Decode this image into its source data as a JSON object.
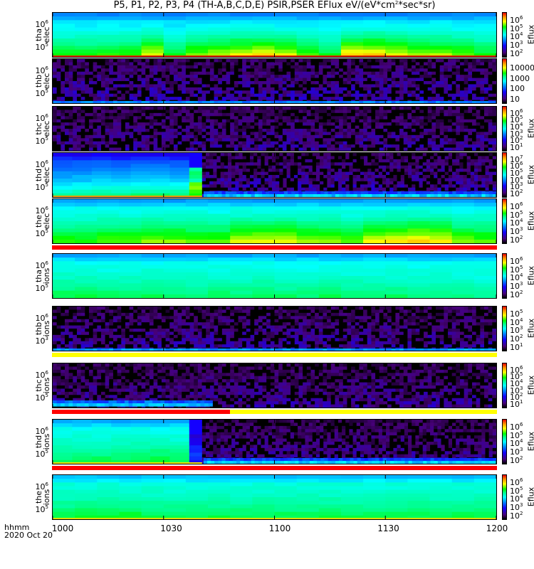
{
  "title": "P5, P1, P2, P3, P4 (TH-A,B,C,D,E) PSIR,PSER EFlux eV/(eV*cm",
  "title_sup": "2",
  "title_end": "*sec*sr)",
  "x_axis": {
    "label_line1": "hhmm",
    "label_line2": "2020 Oct 20",
    "ticks": [
      "1000",
      "1030",
      "1100",
      "1130",
      "1200"
    ]
  },
  "colorbar_label": "Eflux",
  "colors": {
    "bar_red": "#ff0000",
    "bar_yellow": "#ffff00"
  },
  "chart_data": {
    "type": "heatmap",
    "title": "P5, P1, P2, P3, P4 (TH-A,B,C,D,E) PSIR,PSER EFlux eV/(eV*cm^2*sec*sr)",
    "xlabel": "hhmm 2020 Oct 20",
    "xlim": [
      "1000",
      "1200"
    ],
    "note": "levels are fractions (0-1) of each panel's color scale; 20 time bins of 6 min",
    "panels": [
      {
        "probe": "tha",
        "species": "elec",
        "yticks": [
          {
            "b": "10",
            "e": "6"
          },
          {
            "b": "10",
            "e": "5"
          }
        ],
        "cbar": [
          {
            "b": "10",
            "e": "2"
          },
          {
            "b": "10",
            "e": "3"
          },
          {
            "b": "10",
            "e": "4"
          },
          {
            "b": "10",
            "e": "5"
          },
          {
            "b": "10",
            "e": "6"
          }
        ],
        "eflux": true,
        "mode": "smooth",
        "top_level": 0.46,
        "bottom_levels": [
          0.68,
          0.68,
          0.7,
          0.7,
          0.8,
          0.66,
          0.74,
          0.76,
          0.8,
          0.82,
          0.78,
          0.72,
          0.66,
          0.84,
          0.84,
          0.8,
          0.76,
          0.76,
          0.72,
          0.68
        ],
        "bottom_strip": "#e02000"
      },
      {
        "probe": "thb",
        "species": "elec",
        "yticks": [
          {
            "b": "10",
            "e": "6"
          },
          {
            "b": "10",
            "e": "5"
          }
        ],
        "cbar": [
          {
            "b": "10",
            "e": ""
          },
          {
            "b": "100",
            "e": ""
          },
          {
            "b": "1000",
            "e": ""
          },
          {
            "b": "10000",
            "e": ""
          }
        ],
        "eflux": false,
        "mode": "noise",
        "noise_max": 0.2,
        "bottom_line": 0.38
      },
      {
        "probe": "thc",
        "species": "elec",
        "yticks": [
          {
            "b": "10",
            "e": "6"
          },
          {
            "b": "10",
            "e": "5"
          }
        ],
        "cbar": [
          {
            "b": "10",
            "e": "1"
          },
          {
            "b": "10",
            "e": "2"
          },
          {
            "b": "10",
            "e": "3"
          },
          {
            "b": "10",
            "e": "4"
          },
          {
            "b": "10",
            "e": "5"
          },
          {
            "b": "10",
            "e": "6"
          }
        ],
        "eflux": true,
        "mode": "noise",
        "noise_max": 0.17
      },
      {
        "probe": "thd",
        "species": "elec",
        "yticks": [
          {
            "b": "10",
            "e": "6"
          },
          {
            "b": "10",
            "e": "5"
          }
        ],
        "cbar": [
          {
            "b": "10",
            "e": "2"
          },
          {
            "b": "10",
            "e": "3"
          },
          {
            "b": "10",
            "e": "4"
          },
          {
            "b": "10",
            "e": "5"
          },
          {
            "b": "10",
            "e": "6"
          },
          {
            "b": "10",
            "e": "7"
          }
        ],
        "eflux": true,
        "mode": "split",
        "split_fraction": 0.34,
        "top_level": 0.32,
        "bottom_levels": [
          0.58,
          0.58,
          0.6,
          0.6,
          0.62,
          0.62,
          0.6
        ],
        "gap_column_level": 0.72,
        "noise_max": 0.2,
        "bottom_band": 0.4,
        "bottom_strip": "#f0a000"
      },
      {
        "probe": "the",
        "species": "elec",
        "yticks": [
          {
            "b": "10",
            "e": "6"
          },
          {
            "b": "10",
            "e": "5"
          }
        ],
        "cbar": [
          {
            "b": "10",
            "e": "2"
          },
          {
            "b": "10",
            "e": "3"
          },
          {
            "b": "10",
            "e": "4"
          },
          {
            "b": "10",
            "e": "5"
          },
          {
            "b": "10",
            "e": "6"
          }
        ],
        "eflux": true,
        "mode": "smooth",
        "top_level": 0.49,
        "bottom_levels": [
          0.7,
          0.7,
          0.72,
          0.72,
          0.74,
          0.74,
          0.72,
          0.72,
          0.78,
          0.8,
          0.8,
          0.76,
          0.76,
          0.72,
          0.8,
          0.82,
          0.84,
          0.82,
          0.74,
          0.72
        ],
        "bar_below": "red"
      },
      {
        "probe": "tha",
        "species": "ions",
        "yticks": [
          {
            "b": "10",
            "e": "6"
          },
          {
            "b": "10",
            "e": "5"
          }
        ],
        "cbar": [
          {
            "b": "10",
            "e": "2"
          },
          {
            "b": "10",
            "e": "3"
          },
          {
            "b": "10",
            "e": "4"
          },
          {
            "b": "10",
            "e": "5"
          },
          {
            "b": "10",
            "e": "6"
          }
        ],
        "eflux": true,
        "mode": "smooth",
        "top_level": 0.5,
        "bottom_levels": [
          0.64,
          0.64,
          0.63,
          0.63,
          0.64,
          0.62,
          0.62,
          0.63,
          0.62,
          0.63,
          0.62,
          0.62,
          0.63,
          0.62,
          0.62,
          0.62,
          0.6,
          0.6,
          0.6,
          0.58
        ]
      },
      {
        "probe": "thb",
        "species": "ions",
        "yticks": [
          {
            "b": "10",
            "e": "6"
          },
          {
            "b": "10",
            "e": "3"
          }
        ],
        "cbar": [
          {
            "b": "10",
            "e": "1"
          },
          {
            "b": "10",
            "e": "2"
          },
          {
            "b": "10",
            "e": "3"
          },
          {
            "b": "10",
            "e": "4"
          },
          {
            "b": "10",
            "e": "5"
          }
        ],
        "eflux": true,
        "mode": "noise",
        "noise_max": 0.18,
        "bottom_line": 0.4,
        "bar_below": "yellow"
      },
      {
        "probe": "thc",
        "species": "ions",
        "yticks": [
          {
            "b": "10",
            "e": "6"
          },
          {
            "b": "10",
            "e": "5"
          }
        ],
        "cbar": [
          {
            "b": "10",
            "e": "1"
          },
          {
            "b": "10",
            "e": "2"
          },
          {
            "b": "10",
            "e": "3"
          },
          {
            "b": "10",
            "e": "4"
          },
          {
            "b": "10",
            "e": "5"
          },
          {
            "b": "10",
            "e": "6"
          }
        ],
        "eflux": true,
        "mode": "noise",
        "noise_max": 0.17,
        "bottom_band_until": 0.36,
        "bottom_band": 0.4,
        "bar_below": "red-yellow",
        "bar_split_fraction": 0.4
      },
      {
        "probe": "thd",
        "species": "ions",
        "yticks": [
          {
            "b": "10",
            "e": "6"
          },
          {
            "b": "10",
            "e": "5"
          }
        ],
        "cbar": [
          {
            "b": "10",
            "e": "2"
          },
          {
            "b": "10",
            "e": "3"
          },
          {
            "b": "10",
            "e": "4"
          },
          {
            "b": "10",
            "e": "5"
          },
          {
            "b": "10",
            "e": "6"
          }
        ],
        "eflux": true,
        "mode": "split",
        "split_fraction": 0.34,
        "top_level": 0.5,
        "bottom_levels": [
          0.62,
          0.64,
          0.64,
          0.64,
          0.64,
          0.66,
          0.64
        ],
        "gap_column_level": 0.3,
        "noise_max": 0.17,
        "bottom_band": 0.4,
        "bottom_strip": "#f0e000",
        "bar_below": "red"
      },
      {
        "probe": "the",
        "species": "ions",
        "yticks": [
          {
            "b": "10",
            "e": "6"
          },
          {
            "b": "10",
            "e": "5"
          }
        ],
        "cbar": [
          {
            "b": "10",
            "e": "2"
          },
          {
            "b": "10",
            "e": "3"
          },
          {
            "b": "10",
            "e": "4"
          },
          {
            "b": "10",
            "e": "5"
          },
          {
            "b": "10",
            "e": "6"
          }
        ],
        "eflux": true,
        "mode": "smooth",
        "top_level": 0.52,
        "bottom_levels": [
          0.64,
          0.66,
          0.66,
          0.66,
          0.64,
          0.64,
          0.64,
          0.64,
          0.64,
          0.64,
          0.64,
          0.64,
          0.64,
          0.64,
          0.64,
          0.64,
          0.64,
          0.64,
          0.64,
          0.64
        ],
        "bottom_strip": "#e0e000"
      }
    ]
  }
}
